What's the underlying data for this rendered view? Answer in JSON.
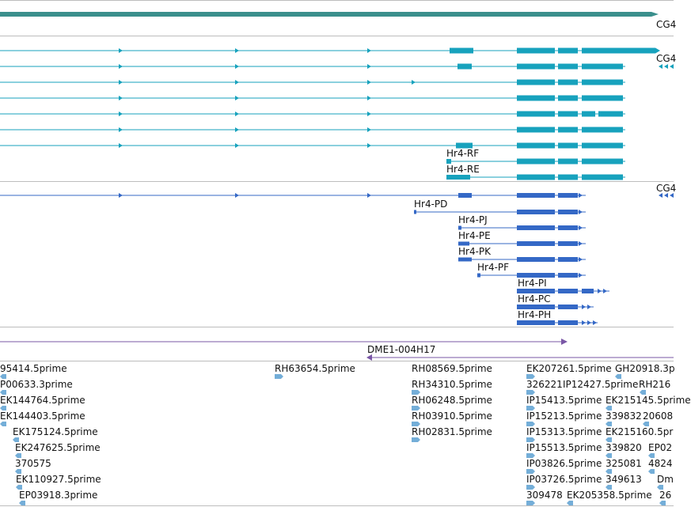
{
  "tracks": {
    "gene_span": {
      "label": "CG4",
      "color": "#3a8f8c"
    },
    "transcripts_a": {
      "color": "#17a2bd",
      "right_label": "CG4",
      "labels": [
        "Hr4-RF",
        "Hr4-RE"
      ]
    },
    "transcripts_b": {
      "color": "#3468c6",
      "right_label": "CG4",
      "labels": [
        "Hr4-PD",
        "Hr4-PJ",
        "Hr4-PE",
        "Hr4-PK",
        "Hr4-PF",
        "Hr4-PI",
        "Hr4-PC",
        "Hr4-PH"
      ]
    },
    "clone": {
      "label": "DME1-004H17",
      "color": "#7a57a6"
    },
    "ests": {
      "color": "#74aed8",
      "labels": [
        "95414.5prime",
        "P00633.3prime",
        "EK144764.5prime",
        "EK144403.5prime",
        "EK175124.5prime",
        "EK247625.5prime",
        "370575",
        "EK110927.5prime",
        "EP03918.3prime",
        "RH63654.5prime",
        "RH08569.5prime",
        "RH34310.5prime",
        "RH06248.5prime",
        "RH03910.5prime",
        "RH02831.5prime",
        "EK207261.5prime",
        "326221",
        "IP12427.5prime",
        "IP15413.5prime",
        "IP15213.5prime",
        "IP15313.5prime",
        "IP15513.5prime",
        "IP03826.5prime",
        "IP03726.5prime",
        "309478",
        "EK205358.5prime",
        "GH20918.3p",
        "RH216",
        "EK215145.5prime",
        "339832",
        "20608",
        "EK215160.5pr",
        "339820",
        "EP02",
        "325081",
        "4824",
        "349613",
        "Dm",
        "26"
      ]
    }
  }
}
